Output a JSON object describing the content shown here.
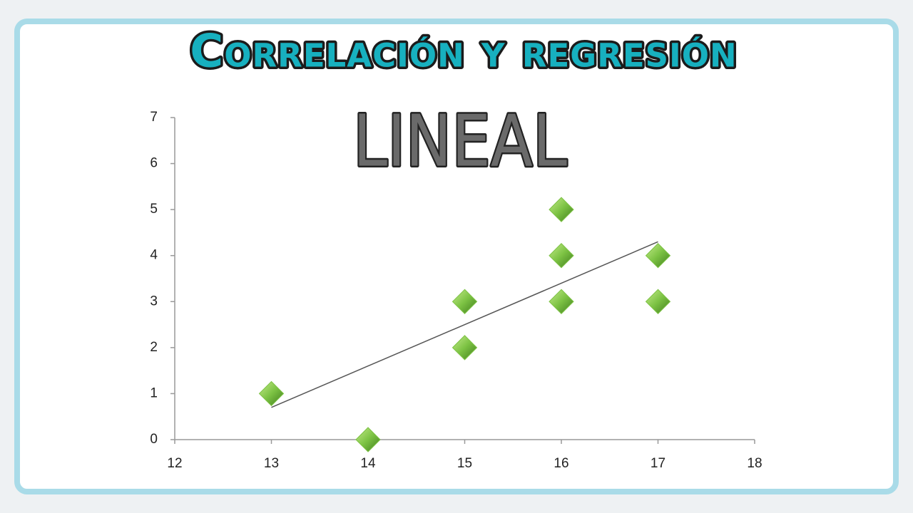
{
  "chart_data": {
    "type": "scatter",
    "title": "Correlación y regresión",
    "subtitle": "LINEAL",
    "x": [
      13,
      14,
      15,
      15,
      16,
      16,
      16,
      17,
      17
    ],
    "values": [
      1,
      0,
      3,
      2,
      5,
      4,
      3,
      4,
      3
    ],
    "color": "#7cc243",
    "xlim": [
      12,
      18
    ],
    "ylim": [
      0,
      7
    ],
    "xticks": [
      12,
      13,
      14,
      15,
      16,
      17,
      18
    ],
    "yticks": [
      0,
      1,
      2,
      3,
      4,
      5,
      6,
      7
    ],
    "trendline": {
      "x": [
        13,
        17
      ],
      "values": [
        0.7,
        4.3
      ]
    }
  }
}
